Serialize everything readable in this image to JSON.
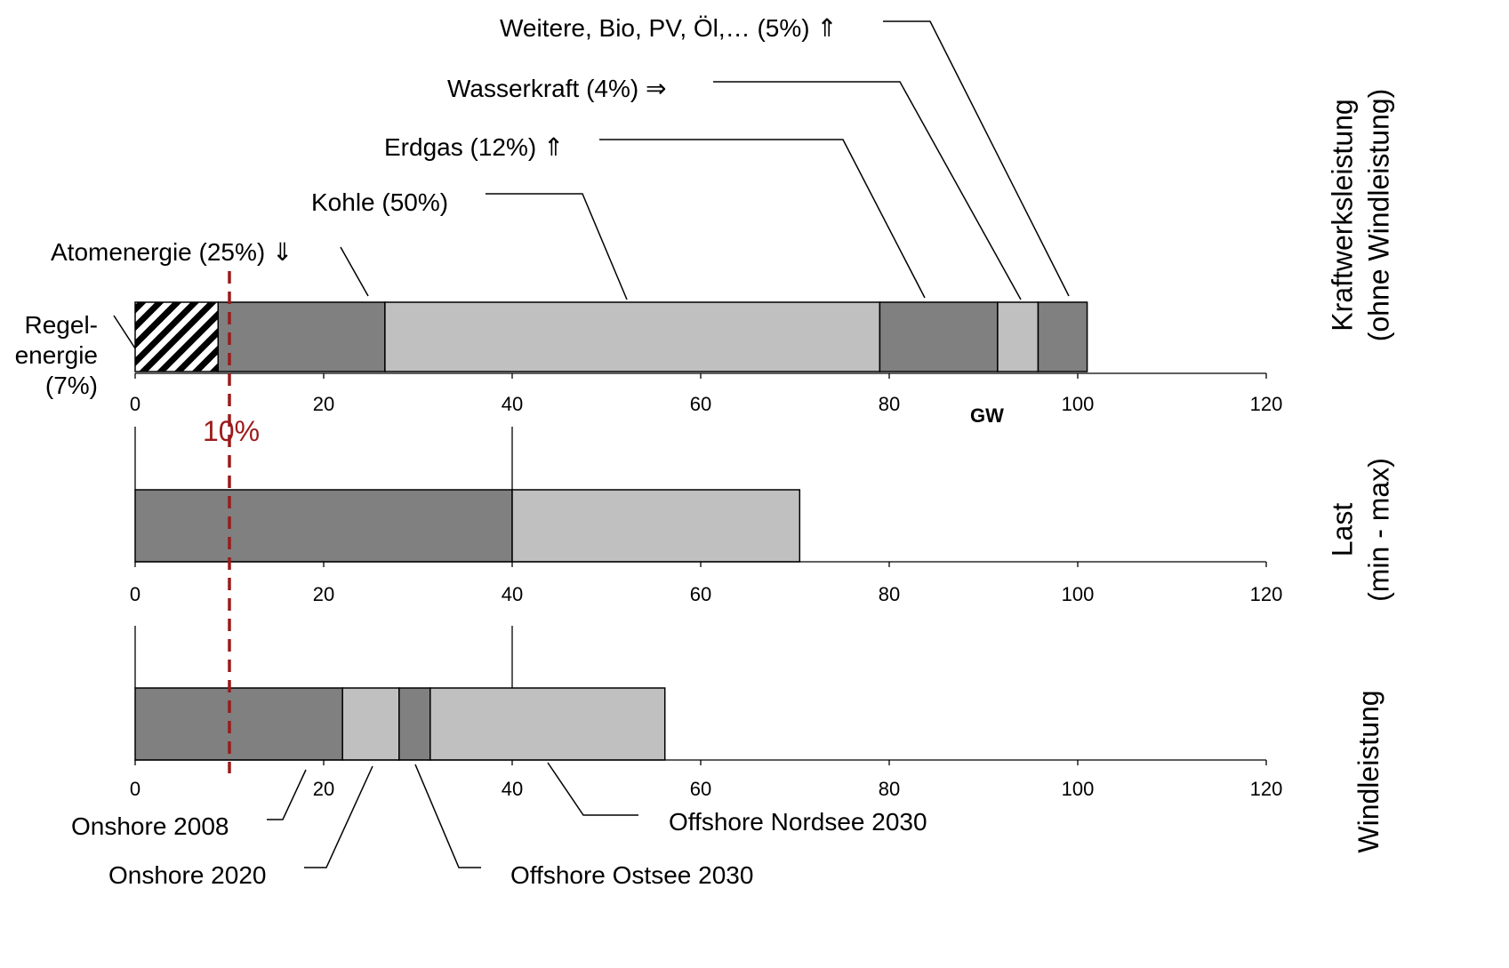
{
  "chart_data": {
    "type": "bar",
    "orientation": "horizontal-stacked",
    "unit": "GW",
    "colors": {
      "dark": "#808080",
      "light": "#c0c0c0",
      "hatch": "#000000",
      "marker": "#9b1b1b"
    },
    "marker": {
      "value": 10,
      "label": "10%"
    },
    "panels": [
      {
        "title": [
          "Kraftwerksleistung",
          "(ohne Windleistung)"
        ],
        "xlim": [
          0,
          120
        ],
        "ticks": [
          "0",
          "20",
          "40",
          "60",
          "80",
          "100",
          "120"
        ],
        "unit_label": "GW",
        "segments": [
          {
            "label": "Regel-\nenergie\n(7%)",
            "start": 0,
            "end": 8.8,
            "fill": "hatch"
          },
          {
            "label": "Atomenergie (25%) ⇓",
            "start": 8.8,
            "end": 26.5,
            "fill": "dark"
          },
          {
            "label": "Kohle (50%)",
            "start": 26.5,
            "end": 79,
            "fill": "light"
          },
          {
            "label": "Erdgas (12%) ⇑",
            "start": 79,
            "end": 91.5,
            "fill": "dark"
          },
          {
            "label": "Wasserkraft (4%) ⇒",
            "start": 91.5,
            "end": 95.8,
            "fill": "light"
          },
          {
            "label": "Weitere, Bio, PV, Öl,… (5%) ⇑",
            "start": 95.8,
            "end": 101,
            "fill": "dark"
          }
        ]
      },
      {
        "title": [
          "Last",
          "(min - max)"
        ],
        "xlim": [
          0,
          120
        ],
        "ticks": [
          "0",
          "20",
          "40",
          "60",
          "80",
          "100",
          "120"
        ],
        "segments": [
          {
            "label": "",
            "start": 0,
            "end": 40,
            "fill": "dark"
          },
          {
            "label": "",
            "start": 40,
            "end": 70.5,
            "fill": "light"
          }
        ]
      },
      {
        "title": [
          "Windleistung"
        ],
        "xlim": [
          0,
          120
        ],
        "ticks": [
          "0",
          "20",
          "40",
          "60",
          "80",
          "100",
          "120"
        ],
        "segments": [
          {
            "label": "Onshore 2008",
            "start": 0,
            "end": 22,
            "fill": "dark"
          },
          {
            "label": "Onshore 2020",
            "start": 22,
            "end": 28,
            "fill": "light"
          },
          {
            "label": "Offshore Ostsee 2030",
            "start": 28,
            "end": 31.3,
            "fill": "dark"
          },
          {
            "label": "Offshore Nordsee 2030",
            "start": 31.3,
            "end": 56.2,
            "fill": "light"
          }
        ]
      }
    ]
  }
}
